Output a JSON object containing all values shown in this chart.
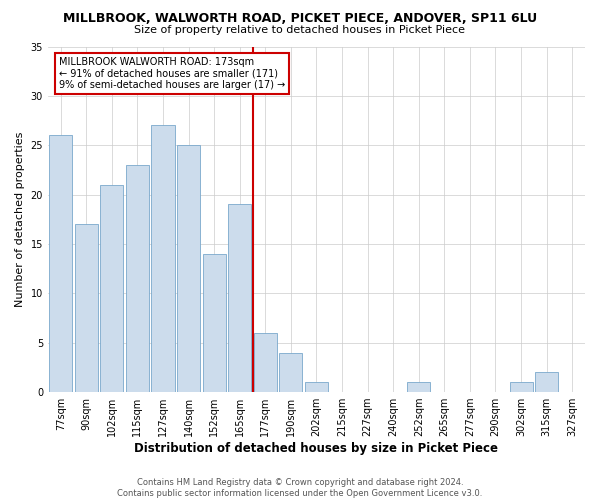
{
  "title": "MILLBROOK, WALWORTH ROAD, PICKET PIECE, ANDOVER, SP11 6LU",
  "subtitle": "Size of property relative to detached houses in Picket Piece",
  "xlabel": "Distribution of detached houses by size in Picket Piece",
  "ylabel": "Number of detached properties",
  "bar_labels": [
    "77sqm",
    "90sqm",
    "102sqm",
    "115sqm",
    "127sqm",
    "140sqm",
    "152sqm",
    "165sqm",
    "177sqm",
    "190sqm",
    "202sqm",
    "215sqm",
    "227sqm",
    "240sqm",
    "252sqm",
    "265sqm",
    "277sqm",
    "290sqm",
    "302sqm",
    "315sqm",
    "327sqm"
  ],
  "bar_values": [
    26,
    17,
    21,
    23,
    27,
    25,
    14,
    19,
    6,
    4,
    1,
    0,
    0,
    0,
    1,
    0,
    0,
    0,
    1,
    2,
    0
  ],
  "bar_color": "#ccdcec",
  "bar_edge_color": "#7aa8cc",
  "vline_x": 7.5,
  "vline_color": "#cc0000",
  "ylim": [
    0,
    35
  ],
  "yticks": [
    0,
    5,
    10,
    15,
    20,
    25,
    30,
    35
  ],
  "annotation_title": "MILLBROOK WALWORTH ROAD: 173sqm",
  "annotation_line1": "← 91% of detached houses are smaller (171)",
  "annotation_line2": "9% of semi-detached houses are larger (17) →",
  "annotation_box_color": "#cc0000",
  "footnote1": "Contains HM Land Registry data © Crown copyright and database right 2024.",
  "footnote2": "Contains public sector information licensed under the Open Government Licence v3.0.",
  "bg_color": "#ffffff",
  "grid_color": "#cccccc",
  "title_fontsize": 9,
  "subtitle_fontsize": 8,
  "ylabel_fontsize": 8,
  "xlabel_fontsize": 8.5,
  "tick_fontsize": 7,
  "annotation_fontsize": 7,
  "footnote_fontsize": 6
}
